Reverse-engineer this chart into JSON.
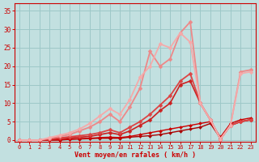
{
  "background_color": "#c2e0e0",
  "grid_color": "#9dc8c8",
  "text_color": "#cc0000",
  "xlabel": "Vent moyen/en rafales ( km/h )",
  "ylim": [
    -0.5,
    37
  ],
  "xlim": [
    -0.5,
    23.5
  ],
  "yticks": [
    0,
    5,
    10,
    15,
    20,
    25,
    30,
    35
  ],
  "xticks": [
    0,
    1,
    2,
    3,
    4,
    5,
    6,
    7,
    8,
    9,
    10,
    11,
    12,
    13,
    14,
    15,
    16,
    17,
    18,
    19,
    20,
    21,
    22,
    23
  ],
  "series": [
    {
      "x": [
        0,
        1,
        2,
        3,
        4,
        5,
        6,
        7,
        8,
        9,
        10,
        11,
        12,
        13,
        14,
        15,
        16,
        17,
        18,
        19,
        20,
        21,
        22,
        23
      ],
      "y": [
        0,
        0,
        0,
        0,
        0,
        0.2,
        0.3,
        0.4,
        0.5,
        0.5,
        0.5,
        0.8,
        1.0,
        1.2,
        1.5,
        2.0,
        2.5,
        3.0,
        3.5,
        4.5,
        0.5,
        4.0,
        5.0,
        5.5
      ],
      "color": "#aa0000",
      "lw": 1.0,
      "marker": "D",
      "ms": 2.0
    },
    {
      "x": [
        0,
        1,
        2,
        3,
        4,
        5,
        6,
        7,
        8,
        9,
        10,
        11,
        12,
        13,
        14,
        15,
        16,
        17,
        18,
        19,
        20,
        21,
        22,
        23
      ],
      "y": [
        0,
        0,
        0,
        0,
        0.1,
        0.3,
        0.4,
        0.5,
        0.7,
        0.8,
        0.7,
        1.0,
        1.5,
        2.0,
        2.5,
        3.0,
        3.5,
        4.0,
        4.5,
        5.0,
        0.8,
        4.5,
        5.5,
        6.0
      ],
      "color": "#cc0000",
      "lw": 1.0,
      "marker": "D",
      "ms": 2.0
    },
    {
      "x": [
        0,
        1,
        2,
        3,
        4,
        5,
        6,
        7,
        8,
        9,
        10,
        11,
        12,
        13,
        14,
        15,
        16,
        17,
        18,
        19,
        20,
        21,
        22,
        23
      ],
      "y": [
        0,
        0,
        0,
        0.2,
        0.4,
        0.6,
        0.8,
        1.0,
        1.5,
        2.0,
        1.5,
        2.5,
        4.0,
        5.5,
        8.0,
        10.0,
        15.0,
        16.0,
        10.0,
        5.5,
        0.3,
        4.0,
        5.0,
        5.5
      ],
      "color": "#cc2020",
      "lw": 1.2,
      "marker": "D",
      "ms": 2.5
    },
    {
      "x": [
        0,
        1,
        2,
        3,
        4,
        5,
        6,
        7,
        8,
        9,
        10,
        11,
        12,
        13,
        14,
        15,
        16,
        17,
        18,
        19,
        20,
        21,
        22,
        23
      ],
      "y": [
        0,
        0,
        0,
        0.3,
        0.6,
        0.9,
        1.2,
        1.5,
        2.0,
        2.8,
        2.0,
        3.5,
        5.0,
        7.0,
        9.5,
        12.0,
        16.0,
        18.0,
        10.0,
        5.5,
        0.3,
        4.0,
        5.0,
        5.5
      ],
      "color": "#dd4444",
      "lw": 1.3,
      "marker": "D",
      "ms": 2.5
    },
    {
      "x": [
        0,
        1,
        2,
        3,
        4,
        5,
        6,
        7,
        8,
        9,
        10,
        11,
        12,
        13,
        14,
        15,
        16,
        17,
        18,
        19,
        20,
        21,
        22,
        23
      ],
      "y": [
        0,
        0,
        0,
        0.5,
        1.0,
        1.5,
        2.5,
        3.5,
        5.0,
        7.0,
        5.0,
        9.0,
        14.0,
        24.0,
        20.0,
        22.0,
        29.0,
        32.0,
        10.0,
        5.5,
        0.3,
        4.0,
        18.5,
        19.0
      ],
      "color": "#ee8888",
      "lw": 1.3,
      "marker": "D",
      "ms": 2.5
    },
    {
      "x": [
        0,
        1,
        2,
        3,
        4,
        5,
        6,
        7,
        8,
        9,
        10,
        11,
        12,
        13,
        14,
        15,
        16,
        17,
        18,
        19,
        20,
        21,
        22,
        23
      ],
      "y": [
        0,
        0,
        0,
        0.7,
        1.3,
        2.0,
        3.0,
        4.5,
        6.5,
        8.5,
        7.0,
        11.0,
        17.0,
        20.0,
        26.0,
        25.0,
        29.0,
        26.5,
        10.0,
        5.5,
        0.3,
        4.0,
        18.0,
        18.5
      ],
      "color": "#f5aaaa",
      "lw": 1.3,
      "marker": "D",
      "ms": 2.5
    }
  ]
}
